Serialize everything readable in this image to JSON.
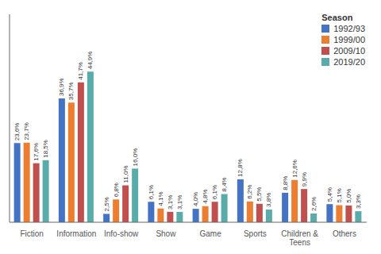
{
  "chart_data": {
    "type": "bar",
    "categories": [
      "Fiction",
      "Information",
      "Info-show",
      "Show",
      "Game",
      "Sports",
      "Children &\nTeens",
      "Others"
    ],
    "series": [
      {
        "name": "1992/93",
        "color": "#4472C4",
        "values": [
          23.6,
          36.9,
          2.5,
          6.1,
          4.0,
          12.8,
          8.8,
          5.4
        ],
        "value_labels": [
          "23,6%",
          "36,9%",
          "2,5%",
          "6,1%",
          "4,0%",
          "12,8%",
          "8,8%",
          "5,4%"
        ]
      },
      {
        "name": "1999/00",
        "color": "#ED7D31",
        "values": [
          23.7,
          35.7,
          6.8,
          4.1,
          4.8,
          6.2,
          12.6,
          5.1
        ],
        "value_labels": [
          "23,7%",
          "35,7%",
          "6,8%",
          "4,1%",
          "4,8%",
          "6,2%",
          "12,6%",
          "5,1%"
        ]
      },
      {
        "name": "2009/10",
        "color": "#C0504D",
        "values": [
          17.6,
          41.7,
          11.0,
          3.1,
          6.1,
          5.5,
          9.9,
          5.0
        ],
        "value_labels": [
          "17,6%",
          "41,7%",
          "11,0%",
          "3,1%",
          "6,1%",
          "5,5%",
          "9,9%",
          "5,0%"
        ]
      },
      {
        "name": "2019/20",
        "color": "#5AACAA",
        "values": [
          18.5,
          44.9,
          16.0,
          3.1,
          8.4,
          3.8,
          2.6,
          3.3
        ],
        "value_labels": [
          "18,5%",
          "44,9%",
          "16,0%",
          "3,1%",
          "8,4%",
          "3,8%",
          "2,6%",
          "3,3%"
        ]
      }
    ],
    "legend_title": "Season",
    "legend": "upper right",
    "ylim": [
      0,
      62
    ],
    "tick_labels": "x",
    "data_labels": true,
    "grid": false
  }
}
